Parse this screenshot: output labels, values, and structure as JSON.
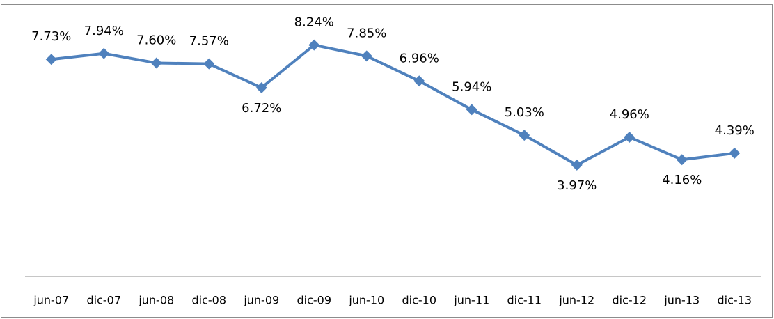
{
  "chart_data": {
    "type": "line",
    "categories": [
      "jun-07",
      "dic-07",
      "jun-08",
      "dic-08",
      "jun-09",
      "dic-09",
      "jun-10",
      "dic-10",
      "jun-11",
      "dic-11",
      "jun-12",
      "dic-12",
      "jun-13",
      "dic-13"
    ],
    "values": [
      7.73,
      7.94,
      7.6,
      7.57,
      6.72,
      8.24,
      7.85,
      6.96,
      5.94,
      5.03,
      3.97,
      4.96,
      4.16,
      4.39
    ],
    "value_labels": [
      "7.73%",
      "7.94%",
      "7.60%",
      "7.57%",
      "6.72%",
      "8.24%",
      "7.85%",
      "6.96%",
      "5.94%",
      "5.03%",
      "3.97%",
      "4.96%",
      "4.16%",
      "4.39%"
    ],
    "color": "#4f81bd",
    "ylim": [
      0,
      9
    ]
  }
}
